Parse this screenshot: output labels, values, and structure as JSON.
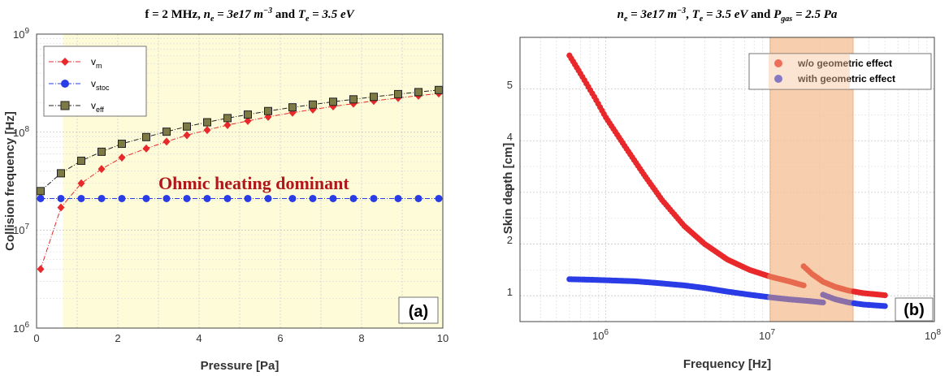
{
  "chart_data": [
    {
      "type": "scatter",
      "title": "f = 2 MHz, n_e = 3e17 m^-3 and T_e = 3.5 eV",
      "title_parts": {
        "prefix": "f = 2 MHz, ",
        "ne": "n",
        "ne_sub": "e",
        "ne_val": " = 3e17 m",
        "ne_exp": "−3",
        "mid": " and ",
        "te": "T",
        "te_sub": "e",
        "te_val": " = 3.5 eV"
      },
      "xlabel": "Pressure [Pa]",
      "ylabel": "Collision frequency [Hz]",
      "xlim": [
        0,
        10
      ],
      "ylim": [
        1000000,
        1000000000
      ],
      "yscale": "log",
      "xticks": [
        "0",
        "2",
        "4",
        "6",
        "8",
        "10"
      ],
      "yticks": [
        {
          "base": "10",
          "exp": "6"
        },
        {
          "base": "10",
          "exp": "7"
        },
        {
          "base": "10",
          "exp": "8"
        },
        {
          "base": "10",
          "exp": "9"
        }
      ],
      "grid": true,
      "legend_position": "top-left",
      "highlight_region": {
        "x_from": 0.65,
        "x_to": 10,
        "color": "#fdfbd8"
      },
      "annotation": "Ohmic heating dominant",
      "panel_label": "(a)",
      "series": [
        {
          "name": "νm",
          "name_base": "v",
          "name_sub": "m",
          "color": "#e8292b",
          "marker": "diamond",
          "line": "dashdot",
          "x": [
            0.1,
            0.6,
            1.1,
            1.6,
            2.1,
            2.7,
            3.2,
            3.7,
            4.2,
            4.7,
            5.2,
            5.7,
            6.3,
            6.8,
            7.3,
            7.8,
            8.3,
            8.9,
            9.4,
            9.9
          ],
          "y": [
            4000000,
            17000000,
            30000000,
            42000000,
            55000000,
            68000000,
            80000000,
            93000000,
            105000000,
            118000000,
            130000000,
            143000000,
            158000000,
            170000000,
            183000000,
            195000000,
            208000000,
            223000000,
            235000000,
            248000000
          ]
        },
        {
          "name": "νstoc",
          "name_base": "v",
          "name_sub": "stoc",
          "color": "#2a3ce6",
          "marker": "circle",
          "line": "dashdot",
          "x": [
            0.1,
            0.6,
            1.1,
            1.6,
            2.1,
            2.7,
            3.2,
            3.7,
            4.2,
            4.7,
            5.2,
            5.7,
            6.3,
            6.8,
            7.3,
            7.8,
            8.3,
            8.9,
            9.4,
            9.9
          ],
          "y": [
            21000000,
            21000000,
            21000000,
            21000000,
            21000000,
            21000000,
            21000000,
            21000000,
            21000000,
            21000000,
            21000000,
            21000000,
            21000000,
            21000000,
            21000000,
            21000000,
            21000000,
            21000000,
            21000000,
            21000000
          ]
        },
        {
          "name": "νeff",
          "name_base": "v",
          "name_sub": "eff",
          "color": "#222222",
          "marker": "square",
          "marker_fill": "#7d7a45",
          "line": "dashdot",
          "x": [
            0.1,
            0.6,
            1.1,
            1.6,
            2.1,
            2.7,
            3.2,
            3.7,
            4.2,
            4.7,
            5.2,
            5.7,
            6.3,
            6.8,
            7.3,
            7.8,
            8.3,
            8.9,
            9.4,
            9.9
          ],
          "y": [
            25000000,
            38000000,
            51000000,
            63000000,
            76000000,
            89000000,
            101000000,
            114000000,
            126000000,
            139000000,
            151000000,
            164000000,
            179000000,
            191000000,
            204000000,
            216000000,
            229000000,
            244000000,
            256000000,
            269000000
          ]
        }
      ]
    },
    {
      "type": "scatter",
      "title": "n_e = 3e17 m^-3, T_e = 3.5 eV and P_gas = 2.5 Pa",
      "title_parts": {
        "ne": "n",
        "ne_sub": "e",
        "ne_val": " = 3e17 m",
        "ne_exp": "−3",
        "sep": ", ",
        "te": "T",
        "te_sub": "e",
        "te_val": " = 3.5 eV",
        "mid": " and ",
        "p": "P",
        "p_sub": "gas",
        "p_val": " = 2.5 Pa"
      },
      "xlabel": "Frequency [Hz]",
      "ylabel": "Skin depth [cm]",
      "xlim": [
        300000,
        100000000
      ],
      "xscale": "log",
      "ylim": [
        0.5,
        6
      ],
      "xticks": [
        {
          "base": "10",
          "exp": "6"
        },
        {
          "base": "10",
          "exp": "7"
        },
        {
          "base": "10",
          "exp": "8"
        }
      ],
      "yticks": [
        "1",
        "2",
        "3",
        "4",
        "5"
      ],
      "grid": true,
      "legend_position": "top-right",
      "highlight_region": {
        "x_from": 10000000,
        "x_to": 32000000,
        "color": "#f6c49a"
      },
      "panel_label": "(b)",
      "series": [
        {
          "name": "w/o geometric effect",
          "color": "#e8282b",
          "segments": [
            {
              "x": [
                600000,
                700000,
                850000,
                1000000,
                1300000,
                1700000,
                2200000,
                3000000,
                4000000,
                5500000,
                7500000,
                10000000,
                13000000,
                16000000
              ],
              "y": [
                5.65,
                5.3,
                4.85,
                4.45,
                3.9,
                3.35,
                2.85,
                2.35,
                2.0,
                1.7,
                1.5,
                1.37,
                1.28,
                1.2
              ]
            },
            {
              "x": [
                16000000,
                18000000,
                21000000,
                25000000,
                30000000,
                37000000,
                50000000
              ],
              "y": [
                1.57,
                1.42,
                1.27,
                1.17,
                1.1,
                1.05,
                1.01
              ]
            }
          ]
        },
        {
          "name": "with geometric effect",
          "color": "#2a3ce6",
          "segments": [
            {
              "x": [
                600000,
                800000,
                1000000,
                1500000,
                2000000,
                3000000,
                4000000,
                5500000,
                7500000,
                10000000,
                13000000,
                17000000,
                21000000
              ],
              "y": [
                1.32,
                1.31,
                1.3,
                1.28,
                1.25,
                1.2,
                1.15,
                1.08,
                1.02,
                0.97,
                0.93,
                0.9,
                0.87
              ]
            },
            {
              "x": [
                21000000,
                25000000,
                30000000,
                37000000,
                50000000
              ],
              "y": [
                1.02,
                0.93,
                0.87,
                0.83,
                0.8
              ]
            }
          ]
        }
      ]
    }
  ]
}
